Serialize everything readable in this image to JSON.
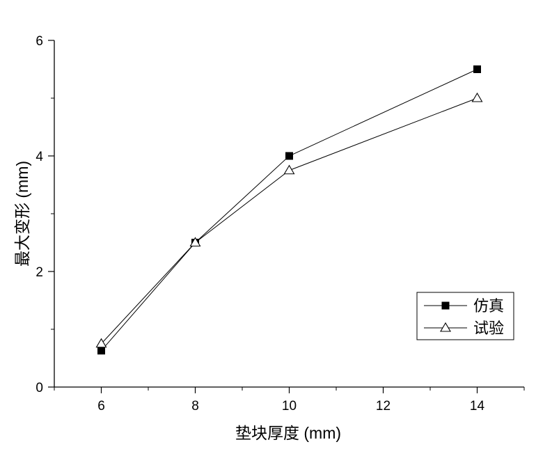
{
  "chart_data": {
    "type": "line",
    "xlabel": "垫块厚度 (mm)",
    "ylabel": "最大变形 (mm)",
    "xlim": [
      5,
      15
    ],
    "ylim": [
      0,
      6
    ],
    "x_ticks": [
      6,
      8,
      10,
      12,
      14
    ],
    "y_ticks": [
      0,
      2,
      4,
      6
    ],
    "x_tick_labels": [
      "6",
      "8",
      "10",
      "12",
      "14"
    ],
    "y_tick_labels": [
      "0",
      "2",
      "4",
      "6"
    ],
    "grid": false,
    "legend_position": "lower-right",
    "series": [
      {
        "name": "仿真",
        "marker": "filled-square",
        "x": [
          6,
          8,
          10,
          14
        ],
        "values": [
          0.63,
          2.5,
          4.0,
          5.5
        ]
      },
      {
        "name": "试验",
        "marker": "open-triangle",
        "x": [
          6,
          8,
          10,
          14
        ],
        "values": [
          0.75,
          2.5,
          3.75,
          5.0
        ]
      }
    ],
    "colors": {
      "line": "#000000",
      "background": "#ffffff"
    }
  }
}
